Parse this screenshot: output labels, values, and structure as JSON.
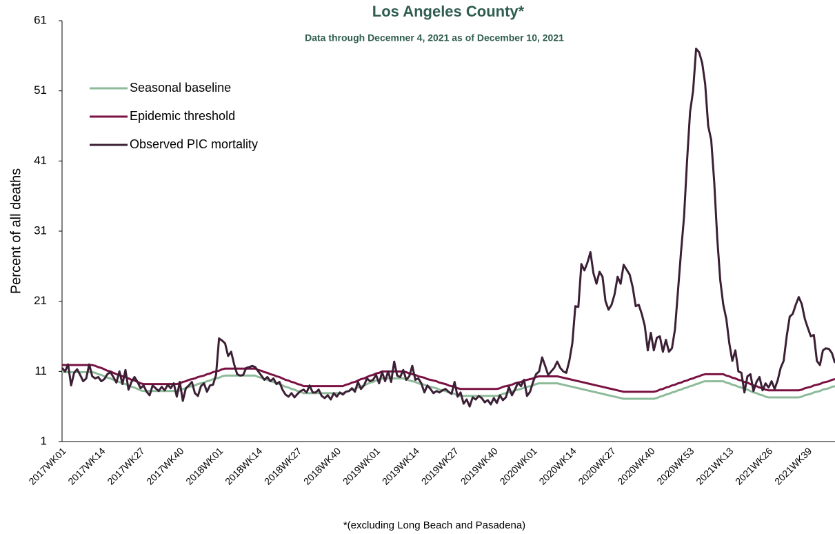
{
  "chart_data": {
    "type": "line",
    "title": "Los Angeles County*",
    "subtitle": "Data through Decemner 4, 2021 as of December 10, 2021",
    "y_label": "Percent of all deaths",
    "footnote": "*(excluding  Long Beach and Pasadena)",
    "ylim": [
      1,
      61
    ],
    "yticks": [
      1,
      11,
      21,
      31,
      41,
      51,
      61
    ],
    "grid": false,
    "legend": "upper-left",
    "categories": [
      "2017WK01",
      null,
      null,
      null,
      null,
      null,
      null,
      null,
      null,
      null,
      null,
      null,
      null,
      "2017WK14",
      null,
      null,
      null,
      null,
      null,
      null,
      null,
      null,
      null,
      null,
      null,
      null,
      "2017WK27",
      null,
      null,
      null,
      null,
      null,
      null,
      null,
      null,
      null,
      null,
      null,
      null,
      "2017WK40",
      null,
      null,
      null,
      null,
      null,
      null,
      null,
      null,
      null,
      null,
      null,
      null,
      "2018WK01",
      null,
      null,
      null,
      null,
      null,
      null,
      null,
      null,
      null,
      null,
      null,
      null,
      "2018WK14",
      null,
      null,
      null,
      null,
      null,
      null,
      null,
      null,
      null,
      null,
      null,
      null,
      "2018WK27",
      null,
      null,
      null,
      null,
      null,
      null,
      null,
      null,
      null,
      null,
      null,
      null,
      "2018WK40",
      null,
      null,
      null,
      null,
      null,
      null,
      null,
      null,
      null,
      null,
      null,
      null,
      "2019WK01",
      null,
      null,
      null,
      null,
      null,
      null,
      null,
      null,
      null,
      null,
      null,
      null,
      "2019WK14",
      null,
      null,
      null,
      null,
      null,
      null,
      null,
      null,
      null,
      null,
      null,
      null,
      "2019WK27",
      null,
      null,
      null,
      null,
      null,
      null,
      null,
      null,
      null,
      null,
      null,
      null,
      "2019WK40",
      null,
      null,
      null,
      null,
      null,
      null,
      null,
      null,
      null,
      null,
      null,
      null,
      "2020WK01",
      null,
      null,
      null,
      null,
      null,
      null,
      null,
      null,
      null,
      null,
      null,
      null,
      "2020WK14",
      null,
      null,
      null,
      null,
      null,
      null,
      null,
      null,
      null,
      null,
      null,
      null,
      "2020WK27",
      null,
      null,
      null,
      null,
      null,
      null,
      null,
      null,
      null,
      null,
      null,
      null,
      "2020WK40",
      null,
      null,
      null,
      null,
      null,
      null,
      null,
      null,
      null,
      null,
      null,
      null,
      "2020WK53",
      null,
      null,
      null,
      null,
      null,
      null,
      null,
      null,
      null,
      null,
      null,
      null,
      "2021WK13",
      null,
      null,
      null,
      null,
      null,
      null,
      null,
      null,
      null,
      null,
      null,
      null,
      "2021WK26",
      null,
      null,
      null,
      null,
      null,
      null,
      null,
      null,
      null,
      null,
      null,
      null,
      "2021WK39",
      null,
      null,
      null,
      null,
      null,
      null,
      null,
      null,
      null
    ],
    "series": [
      {
        "name": "Seasonal baseline",
        "color": "#8dbb99",
        "values": [
          10.9,
          10.9,
          10.9,
          10.9,
          10.9,
          10.9,
          10.9,
          10.9,
          10.9,
          10.9,
          10.9,
          10.8,
          10.6,
          10.5,
          10.3,
          10.1,
          10.0,
          9.8,
          9.6,
          9.5,
          9.3,
          9.2,
          9.0,
          8.8,
          8.7,
          8.5,
          8.3,
          8.2,
          8.2,
          8.2,
          8.2,
          8.2,
          8.2,
          8.2,
          8.2,
          8.2,
          8.2,
          8.2,
          8.2,
          8.3,
          8.5,
          8.6,
          8.8,
          8.9,
          9.0,
          9.2,
          9.3,
          9.4,
          9.6,
          9.7,
          9.9,
          10.0,
          10.1,
          10.3,
          10.4,
          10.4,
          10.4,
          10.4,
          10.4,
          10.4,
          10.4,
          10.4,
          10.4,
          10.4,
          10.4,
          10.2,
          10.1,
          9.9,
          9.8,
          9.6,
          9.5,
          9.3,
          9.2,
          9.0,
          8.8,
          8.7,
          8.5,
          8.4,
          8.2,
          8.1,
          7.9,
          7.9,
          7.9,
          7.9,
          7.9,
          7.9,
          7.9,
          7.9,
          7.9,
          7.9,
          7.9,
          7.9,
          7.9,
          7.9,
          8.1,
          8.2,
          8.4,
          8.5,
          8.7,
          8.9,
          9.0,
          9.2,
          9.4,
          9.5,
          9.7,
          9.8,
          10.0,
          10.0,
          10.0,
          10.0,
          10.0,
          10.0,
          10.0,
          10.0,
          9.9,
          9.7,
          9.6,
          9.5,
          9.3,
          9.2,
          9.1,
          8.9,
          8.8,
          8.7,
          8.6,
          8.4,
          8.3,
          8.2,
          8.0,
          7.9,
          7.8,
          7.6,
          7.5,
          7.5,
          7.5,
          7.5,
          7.5,
          7.5,
          7.5,
          7.5,
          7.5,
          7.5,
          7.5,
          7.5,
          7.5,
          7.6,
          7.8,
          7.9,
          8.0,
          8.1,
          8.3,
          8.4,
          8.5,
          8.7,
          8.8,
          8.9,
          9.0,
          9.2,
          9.3,
          9.3,
          9.3,
          9.3,
          9.3,
          9.3,
          9.3,
          9.2,
          9.1,
          9.0,
          8.9,
          8.8,
          8.7,
          8.6,
          8.5,
          8.4,
          8.3,
          8.2,
          8.1,
          8.0,
          7.9,
          7.8,
          7.7,
          7.6,
          7.5,
          7.4,
          7.3,
          7.2,
          7.1,
          7.1,
          7.1,
          7.1,
          7.1,
          7.1,
          7.1,
          7.1,
          7.1,
          7.1,
          7.1,
          7.2,
          7.4,
          7.5,
          7.7,
          7.8,
          8.0,
          8.1,
          8.3,
          8.4,
          8.6,
          8.7,
          8.9,
          9.0,
          9.2,
          9.3,
          9.5,
          9.6,
          9.6,
          9.6,
          9.6,
          9.6,
          9.6,
          9.6,
          9.4,
          9.3,
          9.1,
          9.0,
          8.8,
          8.7,
          8.5,
          8.4,
          8.2,
          8.0,
          7.9,
          7.7,
          7.6,
          7.4,
          7.3,
          7.3,
          7.3,
          7.3,
          7.3,
          7.3,
          7.3,
          7.3,
          7.3,
          7.3,
          7.3,
          7.4,
          7.6,
          7.7,
          7.8,
          8.0,
          8.1,
          8.2,
          8.4,
          8.5,
          8.6,
          8.8,
          8.9
        ]
      },
      {
        "name": "Epidemic threshold",
        "color": "#7a1142",
        "values": [
          11.9,
          11.9,
          11.9,
          11.9,
          11.9,
          11.9,
          11.9,
          11.9,
          11.9,
          11.9,
          11.9,
          11.8,
          11.6,
          11.5,
          11.3,
          11.1,
          11.0,
          10.8,
          10.6,
          10.5,
          10.3,
          10.2,
          10.0,
          9.8,
          9.7,
          9.5,
          9.3,
          9.2,
          9.2,
          9.2,
          9.2,
          9.2,
          9.2,
          9.2,
          9.2,
          9.2,
          9.2,
          9.2,
          9.2,
          9.3,
          9.5,
          9.6,
          9.8,
          9.9,
          10.0,
          10.2,
          10.3,
          10.4,
          10.6,
          10.7,
          10.9,
          11.0,
          11.1,
          11.3,
          11.4,
          11.4,
          11.4,
          11.4,
          11.4,
          11.4,
          11.4,
          11.4,
          11.4,
          11.4,
          11.4,
          11.2,
          11.1,
          10.9,
          10.8,
          10.6,
          10.5,
          10.3,
          10.2,
          10.0,
          9.8,
          9.7,
          9.5,
          9.4,
          9.2,
          9.1,
          8.9,
          8.9,
          8.9,
          8.9,
          8.9,
          8.9,
          8.9,
          8.9,
          8.9,
          8.9,
          8.9,
          8.9,
          8.9,
          8.9,
          9.1,
          9.2,
          9.4,
          9.5,
          9.7,
          9.9,
          10.0,
          10.2,
          10.4,
          10.5,
          10.7,
          10.8,
          11.0,
          11.0,
          11.0,
          11.0,
          11.0,
          11.0,
          11.0,
          11.0,
          10.9,
          10.7,
          10.6,
          10.5,
          10.3,
          10.2,
          10.1,
          9.9,
          9.8,
          9.7,
          9.6,
          9.4,
          9.3,
          9.2,
          9.0,
          8.9,
          8.8,
          8.6,
          8.5,
          8.5,
          8.5,
          8.5,
          8.5,
          8.5,
          8.5,
          8.5,
          8.5,
          8.5,
          8.5,
          8.5,
          8.5,
          8.6,
          8.8,
          8.9,
          9.0,
          9.1,
          9.3,
          9.4,
          9.5,
          9.7,
          9.8,
          9.9,
          10.0,
          10.2,
          10.3,
          10.3,
          10.3,
          10.3,
          10.3,
          10.3,
          10.3,
          10.2,
          10.1,
          10.0,
          9.9,
          9.8,
          9.7,
          9.6,
          9.5,
          9.4,
          9.3,
          9.2,
          9.1,
          9.0,
          8.9,
          8.8,
          8.7,
          8.6,
          8.5,
          8.4,
          8.3,
          8.2,
          8.1,
          8.1,
          8.1,
          8.1,
          8.1,
          8.1,
          8.1,
          8.1,
          8.1,
          8.1,
          8.1,
          8.2,
          8.4,
          8.5,
          8.7,
          8.8,
          9.0,
          9.1,
          9.3,
          9.4,
          9.6,
          9.7,
          9.9,
          10.0,
          10.2,
          10.3,
          10.5,
          10.6,
          10.6,
          10.6,
          10.6,
          10.6,
          10.6,
          10.6,
          10.4,
          10.3,
          10.1,
          10.0,
          9.8,
          9.7,
          9.5,
          9.4,
          9.2,
          9.0,
          8.9,
          8.7,
          8.6,
          8.4,
          8.3,
          8.3,
          8.3,
          8.3,
          8.3,
          8.3,
          8.3,
          8.3,
          8.3,
          8.3,
          8.3,
          8.4,
          8.6,
          8.7,
          8.8,
          9.0,
          9.1,
          9.2,
          9.4,
          9.5,
          9.6,
          9.8,
          9.9
        ]
      },
      {
        "name": "Observed PIC mortality",
        "color": "#3b1f35",
        "values": [
          11.5,
          11.0,
          12.0,
          9.0,
          10.8,
          11.3,
          10.5,
          9.6,
          10.0,
          12.0,
          10.3,
          10.0,
          10.2,
          9.6,
          9.9,
          10.6,
          10.9,
          10.2,
          9.4,
          11.0,
          9.2,
          11.2,
          8.4,
          9.5,
          10.2,
          9.5,
          8.6,
          9.0,
          8.1,
          7.6,
          9.0,
          8.6,
          8.2,
          8.8,
          8.3,
          9.1,
          8.6,
          9.3,
          7.4,
          9.5,
          6.8,
          8.6,
          9.0,
          9.5,
          7.9,
          7.5,
          8.9,
          9.3,
          8.1,
          9.0,
          9.1,
          10.5,
          15.7,
          15.4,
          15.0,
          13.2,
          13.8,
          12.0,
          10.6,
          10.4,
          10.5,
          11.5,
          11.6,
          11.8,
          11.6,
          11.0,
          10.4,
          9.8,
          10.2,
          9.6,
          10.0,
          9.2,
          9.5,
          8.4,
          7.7,
          7.4,
          7.9,
          7.3,
          7.8,
          8.2,
          8.4,
          8.0,
          9.0,
          8.0,
          8.0,
          8.4,
          7.5,
          7.2,
          7.6,
          7.0,
          7.9,
          7.4,
          8.0,
          7.7,
          8.1,
          8.2,
          8.6,
          8.1,
          9.5,
          8.5,
          9.0,
          10.0,
          9.6,
          9.8,
          10.5,
          9.3,
          10.9,
          9.6,
          11.0,
          9.5,
          12.4,
          10.4,
          10.2,
          11.2,
          9.8,
          10.3,
          11.8,
          9.8,
          10.0,
          9.3,
          8.0,
          9.0,
          8.5,
          7.9,
          8.2,
          8.0,
          8.3,
          8.5,
          8.1,
          7.8,
          9.5,
          7.4,
          8.0,
          6.4,
          7.0,
          6.0,
          7.3,
          7.0,
          7.5,
          7.2,
          6.6,
          6.9,
          6.3,
          7.2,
          6.5,
          7.6,
          6.9,
          7.3,
          8.8,
          7.6,
          8.4,
          9.4,
          8.9,
          9.8,
          7.5,
          8.1,
          9.5,
          10.6,
          11.0,
          13.0,
          11.8,
          10.5,
          11.0,
          11.5,
          12.4,
          11.5,
          11.0,
          10.8,
          12.5,
          15.0,
          20.3,
          20.2,
          26.3,
          25.4,
          26.5,
          28.0,
          25.0,
          23.5,
          25.2,
          24.5,
          21.0,
          19.8,
          20.5,
          22.0,
          24.5,
          23.5,
          26.2,
          25.5,
          24.8,
          23.0,
          20.3,
          20.5,
          19.2,
          17.5,
          14.0,
          16.5,
          14.0,
          15.8,
          16.0,
          13.8,
          15.5,
          13.8,
          14.3,
          17.0,
          22.5,
          28.0,
          33.0,
          41.0,
          48.0,
          51.0,
          57.0,
          56.5,
          55.0,
          52.0,
          46.0,
          44.0,
          38.0,
          30.0,
          24.0,
          20.5,
          18.5,
          15.0,
          12.5,
          14.0,
          11.0,
          10.8,
          8.0,
          10.3,
          10.6,
          8.2,
          9.5,
          10.2,
          8.3,
          9.3,
          8.7,
          9.6,
          8.5,
          9.7,
          11.5,
          12.5,
          16.0,
          18.8,
          19.2,
          20.5,
          21.6,
          20.6,
          18.5,
          17.2,
          16.0,
          16.2,
          12.5,
          11.9,
          14.0,
          14.3,
          14.2,
          13.6,
          12.2
        ]
      }
    ]
  }
}
